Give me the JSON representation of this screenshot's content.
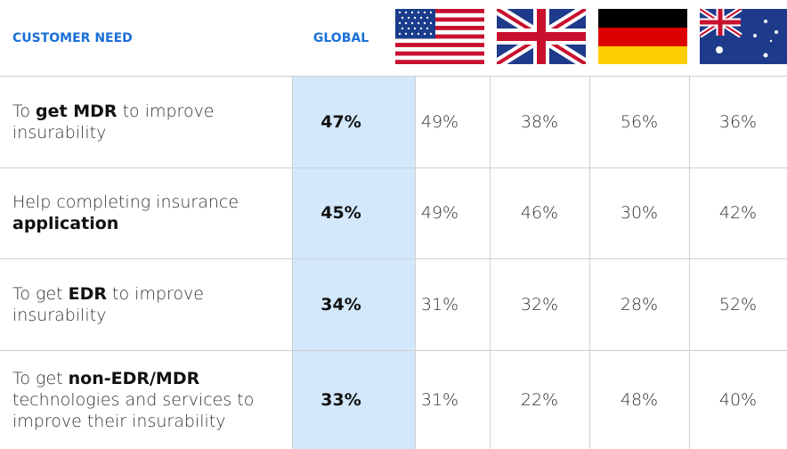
{
  "header": {
    "need": "CUSTOMER NEED",
    "global": "GLOBAL"
  },
  "rows": [
    {
      "need": [
        {
          "text": "To ",
          "bold": false
        },
        {
          "text": "get MDR",
          "bold": true
        },
        {
          "text": " to improve insurability",
          "bold": false
        }
      ],
      "global": "47%",
      "countries": [
        "49%",
        "38%",
        "56%",
        "36%"
      ]
    },
    {
      "need": [
        {
          "text": "Help completing insurance ",
          "bold": false
        },
        {
          "text": "application",
          "bold": true
        }
      ],
      "global": "45%",
      "countries": [
        "49%",
        "46%",
        "30%",
        "42%"
      ]
    },
    {
      "need": [
        {
          "text": "To get ",
          "bold": false
        },
        {
          "text": "EDR",
          "bold": true
        },
        {
          "text": " to improve insurability",
          "bold": false
        }
      ],
      "global": "34%",
      "countries": [
        "31%",
        "32%",
        "28%",
        "52%"
      ]
    },
    {
      "need": [
        {
          "text": "To get ",
          "bold": false
        },
        {
          "text": "non-EDR/MDR",
          "bold": true
        },
        {
          "text": " technologies and services to improve their insurability",
          "bold": false
        }
      ],
      "global": "33%",
      "countries": [
        "31%",
        "22%",
        "48%",
        "40%"
      ]
    }
  ]
}
